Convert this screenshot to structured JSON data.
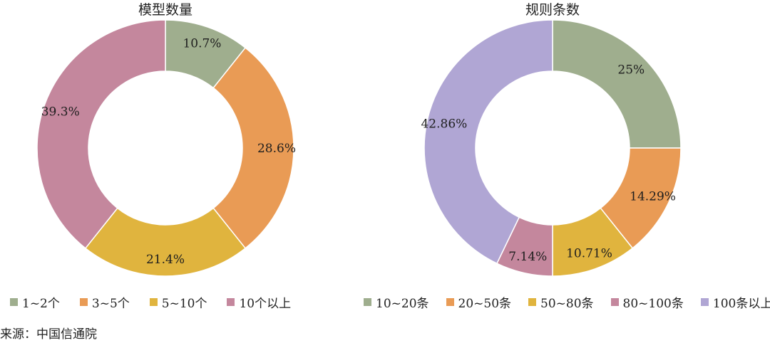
{
  "chart_data": [
    {
      "type": "pie",
      "title": "模型数量",
      "categories": [
        "1~2个",
        "3~5个",
        "5~10个",
        "10个以上"
      ],
      "values": [
        10.7,
        28.6,
        21.4,
        39.3
      ],
      "labels": [
        "10.7%",
        "28.6%",
        "21.4%",
        "39.3%"
      ],
      "colors": [
        "#9fae8e",
        "#e99b55",
        "#e0b43e",
        "#c4879d"
      ],
      "legend": "bottom"
    },
    {
      "type": "pie",
      "title": "规则条数",
      "categories": [
        "10~20条",
        "20~50条",
        "50~80条",
        "80~100条",
        "100条以上"
      ],
      "values": [
        25,
        14.29,
        10.71,
        7.14,
        42.86
      ],
      "labels": [
        "25%",
        "14.29%",
        "10.71%",
        "7.14%",
        "42.86%"
      ],
      "colors": [
        "#9fae8e",
        "#e99b55",
        "#e0b43e",
        "#c4879d",
        "#b0a6d4"
      ],
      "legend": "bottom"
    }
  ],
  "source": "来源：中国信通院"
}
